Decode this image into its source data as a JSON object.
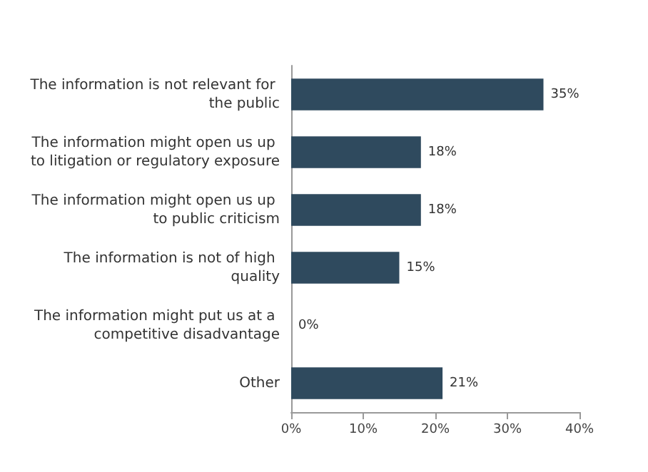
{
  "chart_data": {
    "type": "bar",
    "orientation": "horizontal",
    "categories": [
      "The information is not relevant for the public",
      "The information might open us up to litigation or regulatory exposure",
      "The information might open us up to public criticism",
      "The information is not of high quality",
      "The information might put us at a competitive disadvantage",
      "Other"
    ],
    "values": [
      35,
      18,
      18,
      15,
      0,
      21
    ],
    "value_labels": [
      "35%",
      "18%",
      "18%",
      "15%",
      "0%",
      "21%"
    ],
    "color": "#2f4a5e",
    "xlim": [
      0,
      40
    ],
    "xticks": [
      {
        "value": 0,
        "label": "0%"
      },
      {
        "value": 10,
        "label": "10%"
      },
      {
        "value": 20,
        "label": "20%"
      },
      {
        "value": 30,
        "label": "30%"
      },
      {
        "value": 40,
        "label": "40%"
      }
    ],
    "grid": false
  }
}
